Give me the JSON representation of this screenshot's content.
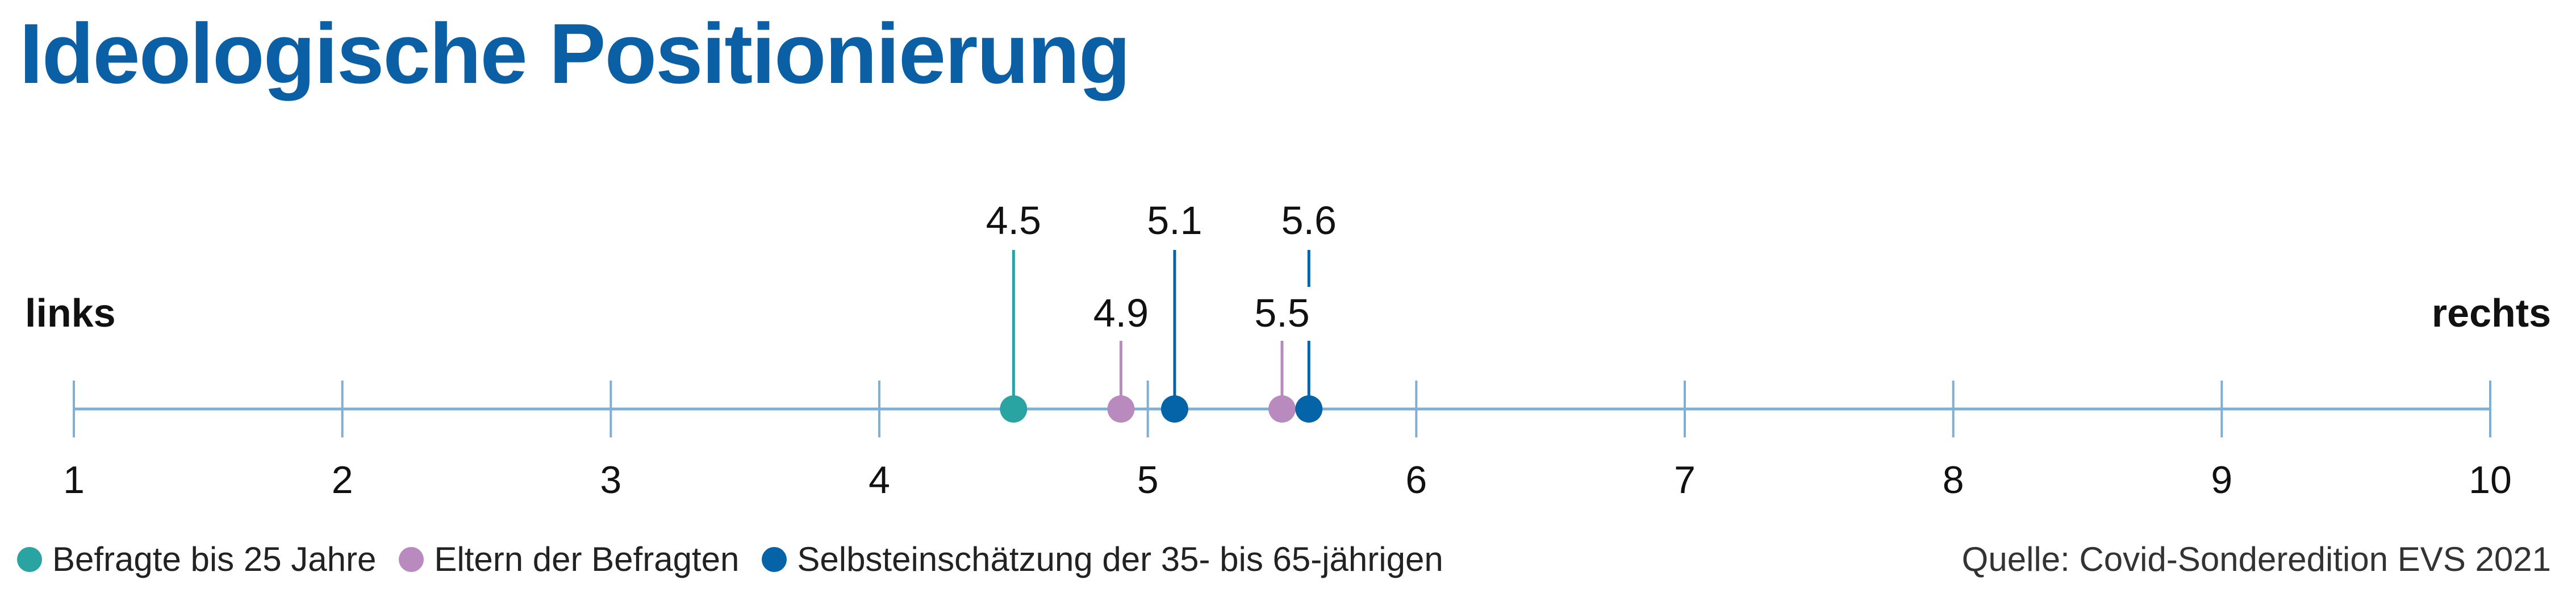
{
  "chart_data": {
    "type": "scatter",
    "title": "Ideologische Positionierung",
    "left_label": "links",
    "right_label": "rechts",
    "xlim": [
      1,
      10
    ],
    "ticks": [
      "1",
      "2",
      "3",
      "4",
      "5",
      "6",
      "7",
      "8",
      "9",
      "10"
    ],
    "series": [
      {
        "name": "Befragte bis 25 Jahre",
        "color": "#2aa3a3",
        "values": [
          4.5
        ],
        "labels": [
          "4.5"
        ],
        "label_row": "top"
      },
      {
        "name": "Eltern der Befragten",
        "color": "#b98abd",
        "values": [
          4.9,
          5.5
        ],
        "labels": [
          "4.9",
          "5.5"
        ],
        "label_row": "bottom"
      },
      {
        "name": "Selbsteinschätzung der 35- bis 65-jährigen",
        "color": "#0563a8",
        "values": [
          5.1,
          5.6
        ],
        "labels": [
          "5.1",
          "5.6"
        ],
        "label_row": "top"
      }
    ],
    "source": "Quelle: Covid-Sonderedition EVS 2021"
  },
  "colors": {
    "title": "#0a5fa5",
    "axis": "#7fb0d3"
  }
}
